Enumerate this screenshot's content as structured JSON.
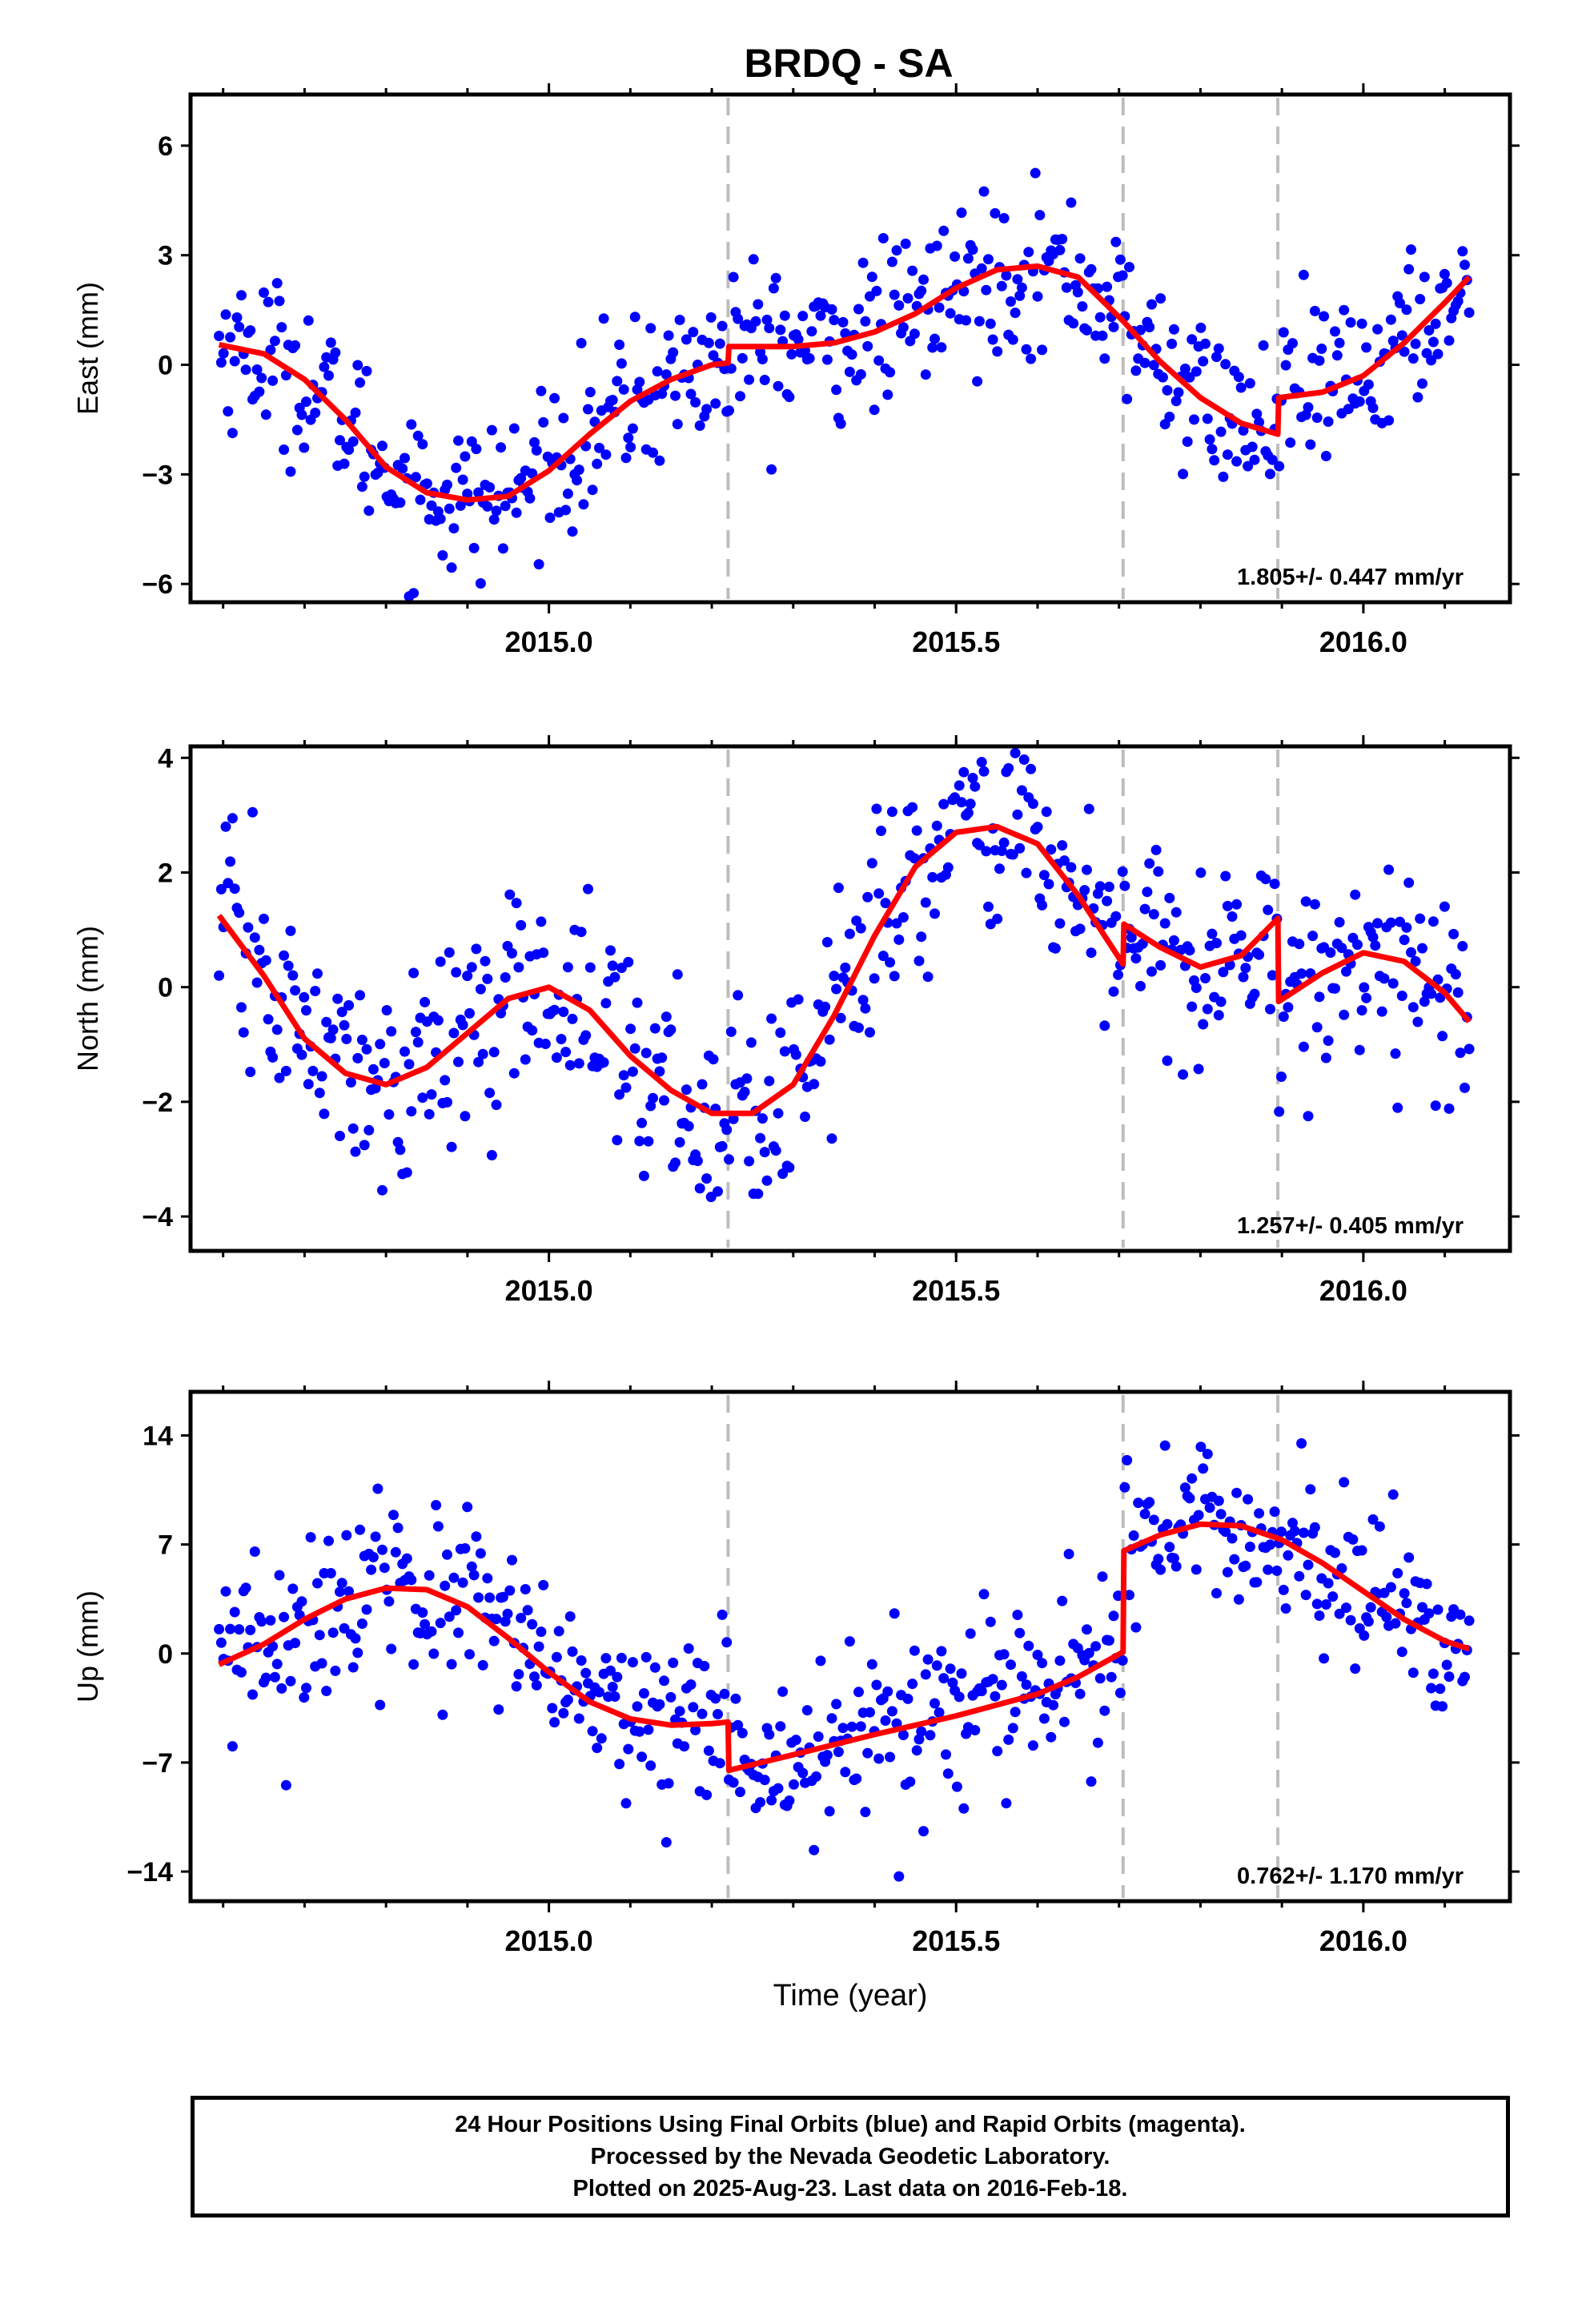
{
  "title": "BRDQ - SA",
  "colors": {
    "points": "#0000ff",
    "model": "#ff0000",
    "offsets": "#bdbdbd",
    "frame": "#000000"
  },
  "chart_data": [
    {
      "type": "scatter",
      "ylabel": "East (mm)",
      "xlim": [
        2014.56,
        2016.18
      ],
      "ylim": [
        -6.5,
        7.4
      ],
      "yticks": [
        6,
        3,
        0,
        -3,
        -6
      ],
      "ytick_labels": [
        "6",
        "3",
        "0",
        "−3",
        "−6"
      ],
      "xticks": [
        2015.0,
        2015.5,
        2016.0
      ],
      "xtick_labels": [
        "2015.0",
        "2015.5",
        "2016.0"
      ],
      "offset_lines": [
        2015.22,
        2015.705,
        2015.895
      ],
      "rate_text": "1.805+/- 0.447 mm/yr",
      "model": {
        "x": [
          2014.595,
          2014.65,
          2014.7,
          2014.75,
          2014.8,
          2014.85,
          2014.9,
          2014.95,
          2015.0,
          2015.05,
          2015.1,
          2015.15,
          2015.2,
          2015.22,
          2015.221,
          2015.3,
          2015.35,
          2015.4,
          2015.45,
          2015.5,
          2015.55,
          2015.6,
          2015.65,
          2015.705,
          2015.75,
          2015.8,
          2015.85,
          2015.895,
          2015.896,
          2015.95,
          2016.0,
          2016.05,
          2016.1,
          2016.13
        ],
        "y": [
          0.55,
          0.3,
          -0.4,
          -1.5,
          -2.8,
          -3.5,
          -3.7,
          -3.6,
          -2.9,
          -1.9,
          -1.0,
          -0.4,
          0.0,
          0.05,
          0.5,
          0.5,
          0.6,
          0.9,
          1.4,
          2.1,
          2.6,
          2.7,
          2.4,
          1.2,
          0.1,
          -0.9,
          -1.6,
          -1.9,
          -0.9,
          -0.75,
          -0.3,
          0.6,
          1.7,
          2.4
        ]
      },
      "points": {
        "count": 560,
        "mean_scatter_mm": 1.1,
        "x_range": [
          2014.595,
          2016.13
        ]
      }
    },
    {
      "type": "scatter",
      "ylabel": "North (mm)",
      "xlim": [
        2014.56,
        2016.18
      ],
      "ylim": [
        -4.6,
        4.2
      ],
      "yticks": [
        4,
        2,
        0,
        -2,
        -4
      ],
      "ytick_labels": [
        "4",
        "2",
        "0",
        "−2",
        "−4"
      ],
      "xticks": [
        2015.0,
        2015.5,
        2016.0
      ],
      "xtick_labels": [
        "2015.0",
        "2015.5",
        "2016.0"
      ],
      "offset_lines": [
        2015.22,
        2015.705,
        2015.895
      ],
      "rate_text": "1.257+/- 0.405 mm/yr",
      "model": {
        "x": [
          2014.595,
          2014.65,
          2014.7,
          2014.75,
          2014.8,
          2014.85,
          2014.9,
          2014.95,
          2015.0,
          2015.05,
          2015.1,
          2015.15,
          2015.2,
          2015.25,
          2015.3,
          2015.35,
          2015.4,
          2015.45,
          2015.5,
          2015.55,
          2015.6,
          2015.65,
          2015.705,
          2015.706,
          2015.75,
          2015.8,
          2015.85,
          2015.895,
          2015.896,
          2015.95,
          2016.0,
          2016.05,
          2016.1,
          2016.13
        ],
        "y": [
          1.25,
          0.2,
          -0.9,
          -1.5,
          -1.7,
          -1.4,
          -0.8,
          -0.2,
          0.0,
          -0.4,
          -1.2,
          -1.8,
          -2.2,
          -2.2,
          -1.7,
          -0.5,
          0.9,
          2.1,
          2.7,
          2.8,
          2.5,
          1.6,
          0.4,
          1.1,
          0.7,
          0.35,
          0.55,
          1.2,
          -0.25,
          0.25,
          0.6,
          0.45,
          -0.1,
          -0.6
        ]
      },
      "points": {
        "count": 560,
        "mean_scatter_mm": 0.9,
        "x_range": [
          2014.595,
          2016.13
        ]
      }
    },
    {
      "type": "scatter",
      "ylabel": "Up (mm)",
      "xlabel": "Time (year)",
      "xlim": [
        2014.56,
        2016.18
      ],
      "ylim": [
        -15.9,
        16.8
      ],
      "yticks": [
        14,
        7,
        0,
        -7,
        -14
      ],
      "ytick_labels": [
        "14",
        "7",
        "0",
        "−7",
        "−14"
      ],
      "xticks": [
        2015.0,
        2015.5,
        2016.0
      ],
      "xtick_labels": [
        "2015.0",
        "2015.5",
        "2016.0"
      ],
      "offset_lines": [
        2015.22,
        2015.705,
        2015.895
      ],
      "rate_text": "0.762+/- 1.170 mm/yr",
      "model": {
        "x": [
          2014.595,
          2014.65,
          2014.7,
          2014.75,
          2014.8,
          2014.85,
          2014.9,
          2014.95,
          2015.0,
          2015.05,
          2015.1,
          2015.15,
          2015.2,
          2015.22,
          2015.221,
          2015.3,
          2015.4,
          2015.5,
          2015.6,
          2015.65,
          2015.705,
          2015.706,
          2015.75,
          2015.8,
          2015.85,
          2015.9,
          2015.95,
          2016.0,
          2016.05,
          2016.1,
          2016.13
        ],
        "y": [
          -0.7,
          0.6,
          2.2,
          3.5,
          4.2,
          4.1,
          3.0,
          1.0,
          -1.2,
          -3.1,
          -4.2,
          -4.6,
          -4.5,
          -4.4,
          -7.5,
          -6.5,
          -5.2,
          -4.0,
          -2.6,
          -1.5,
          0.1,
          6.6,
          7.6,
          8.3,
          8.2,
          7.3,
          5.8,
          4.0,
          2.2,
          0.8,
          0.3
        ]
      },
      "points": {
        "count": 560,
        "mean_scatter_mm": 2.8,
        "x_range": [
          2014.595,
          2016.13
        ]
      }
    }
  ],
  "footer": {
    "line1": "24 Hour Positions Using Final Orbits (blue) and Rapid Orbits (magenta).",
    "line2": "Processed by the Nevada Geodetic Laboratory.",
    "line3": "Plotted on 2025-Aug-23. Last data on 2016-Feb-18."
  }
}
